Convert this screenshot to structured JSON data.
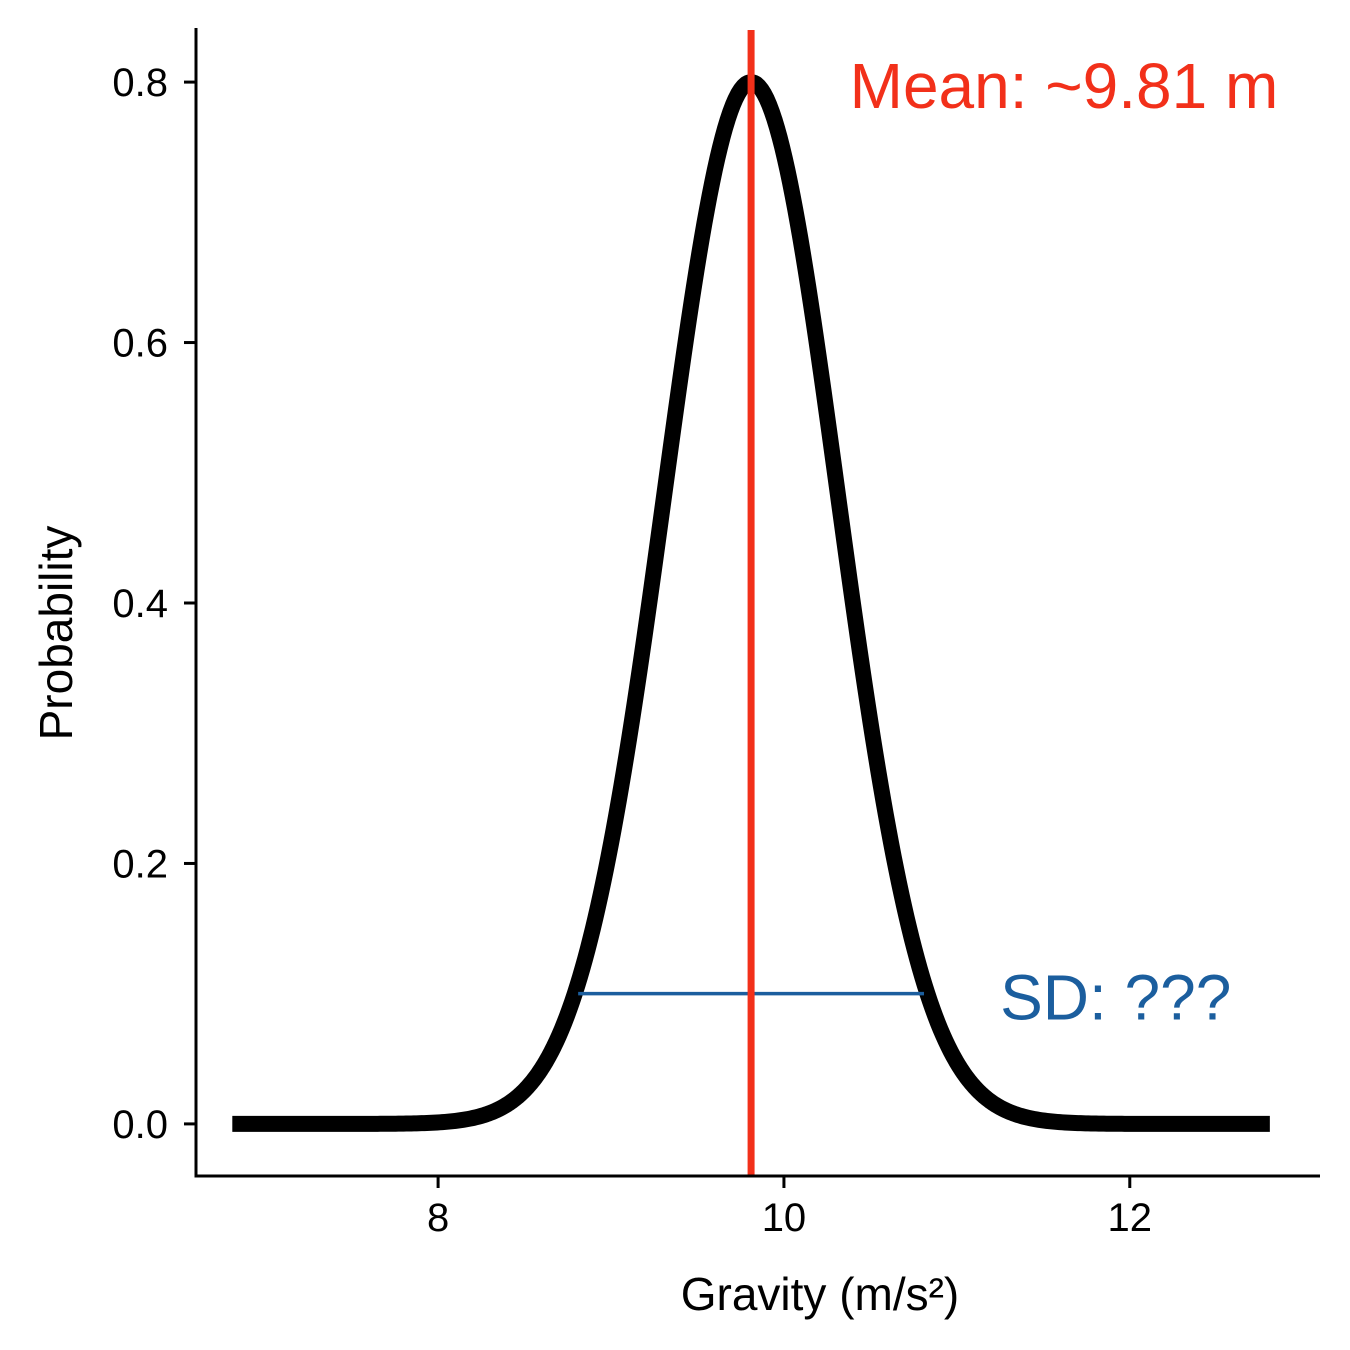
{
  "chart_data": {
    "type": "line",
    "title": "",
    "xlabel": "Gravity (m/s²)",
    "ylabel": "Probability",
    "xlim": [
      6.6,
      13.1
    ],
    "ylim": [
      -0.04,
      0.84
    ],
    "xticks": [
      8,
      10,
      12
    ],
    "xtick_labels": [
      "8",
      "10",
      "12"
    ],
    "yticks": [
      0.0,
      0.2,
      0.4,
      0.6,
      0.8
    ],
    "ytick_labels": [
      "0.0",
      "0.2",
      "0.4",
      "0.6",
      "0.8"
    ],
    "grid": false,
    "curve": {
      "distribution": "normal",
      "mean": 9.81,
      "sd": 0.5,
      "x_range": [
        6.81,
        12.81
      ],
      "peak": 0.8,
      "color": "#000000"
    },
    "mean_line": {
      "x": 9.81,
      "color": "#F2301A",
      "label": "Mean: ~9.81 m",
      "label_x": 10.38,
      "label_y": 0.8
    },
    "sd_segment": {
      "x_start": 8.81,
      "x_end": 10.81,
      "y": 0.1,
      "color": "#1B5E9E",
      "label": "SD: ???",
      "label_x": 11.25,
      "label_y": 0.1
    }
  }
}
